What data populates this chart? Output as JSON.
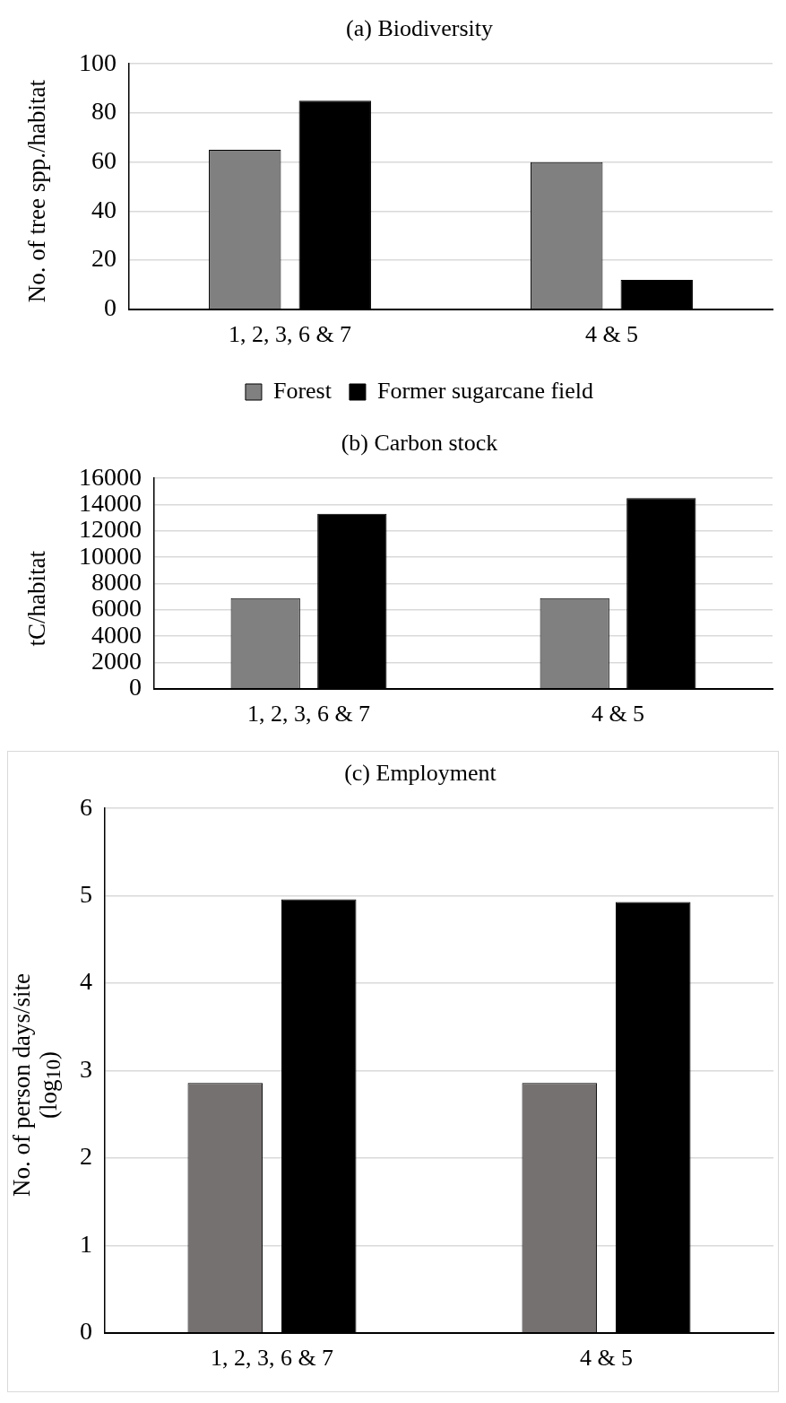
{
  "chart_data": [
    {
      "type": "bar",
      "title": "(a) Biodiversity",
      "ylabel": "No. of tree spp./habitat",
      "categories": [
        "1, 2, 3, 6 & 7",
        "4 & 5"
      ],
      "series": [
        {
          "name": "Forest",
          "color": "#808080",
          "values": [
            65,
            60
          ]
        },
        {
          "name": "Former sugarcane field",
          "color": "#000000",
          "values": [
            85,
            12
          ]
        }
      ],
      "ylim": [
        0,
        100
      ],
      "yticks": [
        0,
        20,
        40,
        60,
        80,
        100
      ],
      "grid": "y",
      "legend": "bottom"
    },
    {
      "type": "bar",
      "title": "(b) Carbon stock",
      "ylabel": "tC/habitat",
      "categories": [
        "1, 2, 3, 6 & 7",
        "4 & 5"
      ],
      "series": [
        {
          "color": "#808080",
          "values": [
            6900,
            6900
          ]
        },
        {
          "color": "#000000",
          "values": [
            13300,
            14500
          ]
        }
      ],
      "ylim": [
        0,
        16000
      ],
      "yticks": [
        0,
        2000,
        4000,
        6000,
        8000,
        10000,
        12000,
        14000,
        16000
      ],
      "grid": "y"
    },
    {
      "type": "bar",
      "title": "(c) Employment",
      "ylabel": "No. of person days/site (log$_{10}$)",
      "categories": [
        "1, 2, 3, 6 & 7",
        "4 & 5"
      ],
      "series": [
        {
          "color": "#767171",
          "values": [
            2.86,
            2.86
          ]
        },
        {
          "color": "#000000",
          "values": [
            4.96,
            4.93
          ]
        }
      ],
      "ylim": [
        0,
        6
      ],
      "yticks": [
        0,
        1,
        2,
        3,
        4,
        5,
        6
      ],
      "grid": "y"
    }
  ]
}
